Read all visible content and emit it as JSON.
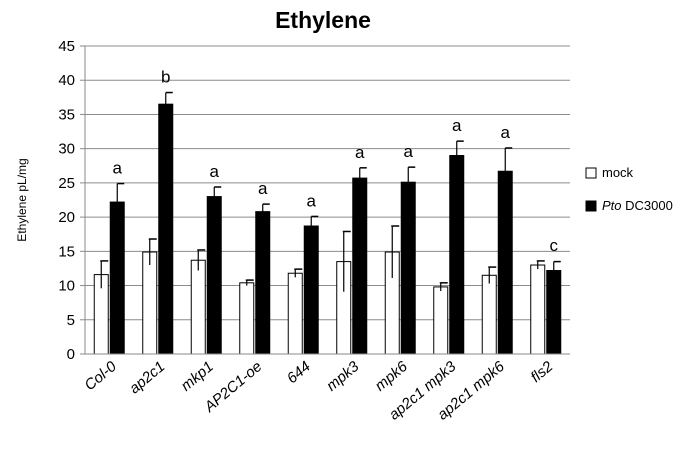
{
  "chart_data": {
    "type": "bar",
    "title": "Ethylene",
    "xlabel": "",
    "ylabel": "Ethylene pL/mg",
    "ylim": [
      0,
      45
    ],
    "yticks": [
      0,
      5,
      10,
      15,
      20,
      25,
      30,
      35,
      40,
      45
    ],
    "grid": true,
    "legend_position": "right",
    "categories": [
      "Col-0",
      "ap2c1",
      "mkp1",
      "AP2C1-oe",
      "644",
      "mpk3",
      "mpk6",
      "ap2c1 mpk3",
      "ap2c1 mpk6",
      "fls2"
    ],
    "series": [
      {
        "name": "mock",
        "color": "#ffffff",
        "values": [
          11.6,
          14.9,
          13.7,
          10.4,
          11.8,
          13.5,
          14.9,
          9.8,
          11.5,
          13.0
        ],
        "errors": [
          2.0,
          1.9,
          1.5,
          0.4,
          0.6,
          4.4,
          3.8,
          0.6,
          1.2,
          0.6
        ]
      },
      {
        "name": "DC3000",
        "name_italic_prefix": "Pto",
        "color": "#000000",
        "values": [
          22.2,
          36.5,
          23.0,
          20.8,
          18.7,
          25.7,
          25.1,
          29.0,
          26.7,
          12.2
        ],
        "errors": [
          2.7,
          1.7,
          1.4,
          1.1,
          1.4,
          1.5,
          2.2,
          2.1,
          3.4,
          1.3
        ]
      }
    ],
    "annotations": [
      "a",
      "b",
      "a",
      "a",
      "a",
      "a",
      "a",
      "a",
      "a",
      "c"
    ]
  }
}
